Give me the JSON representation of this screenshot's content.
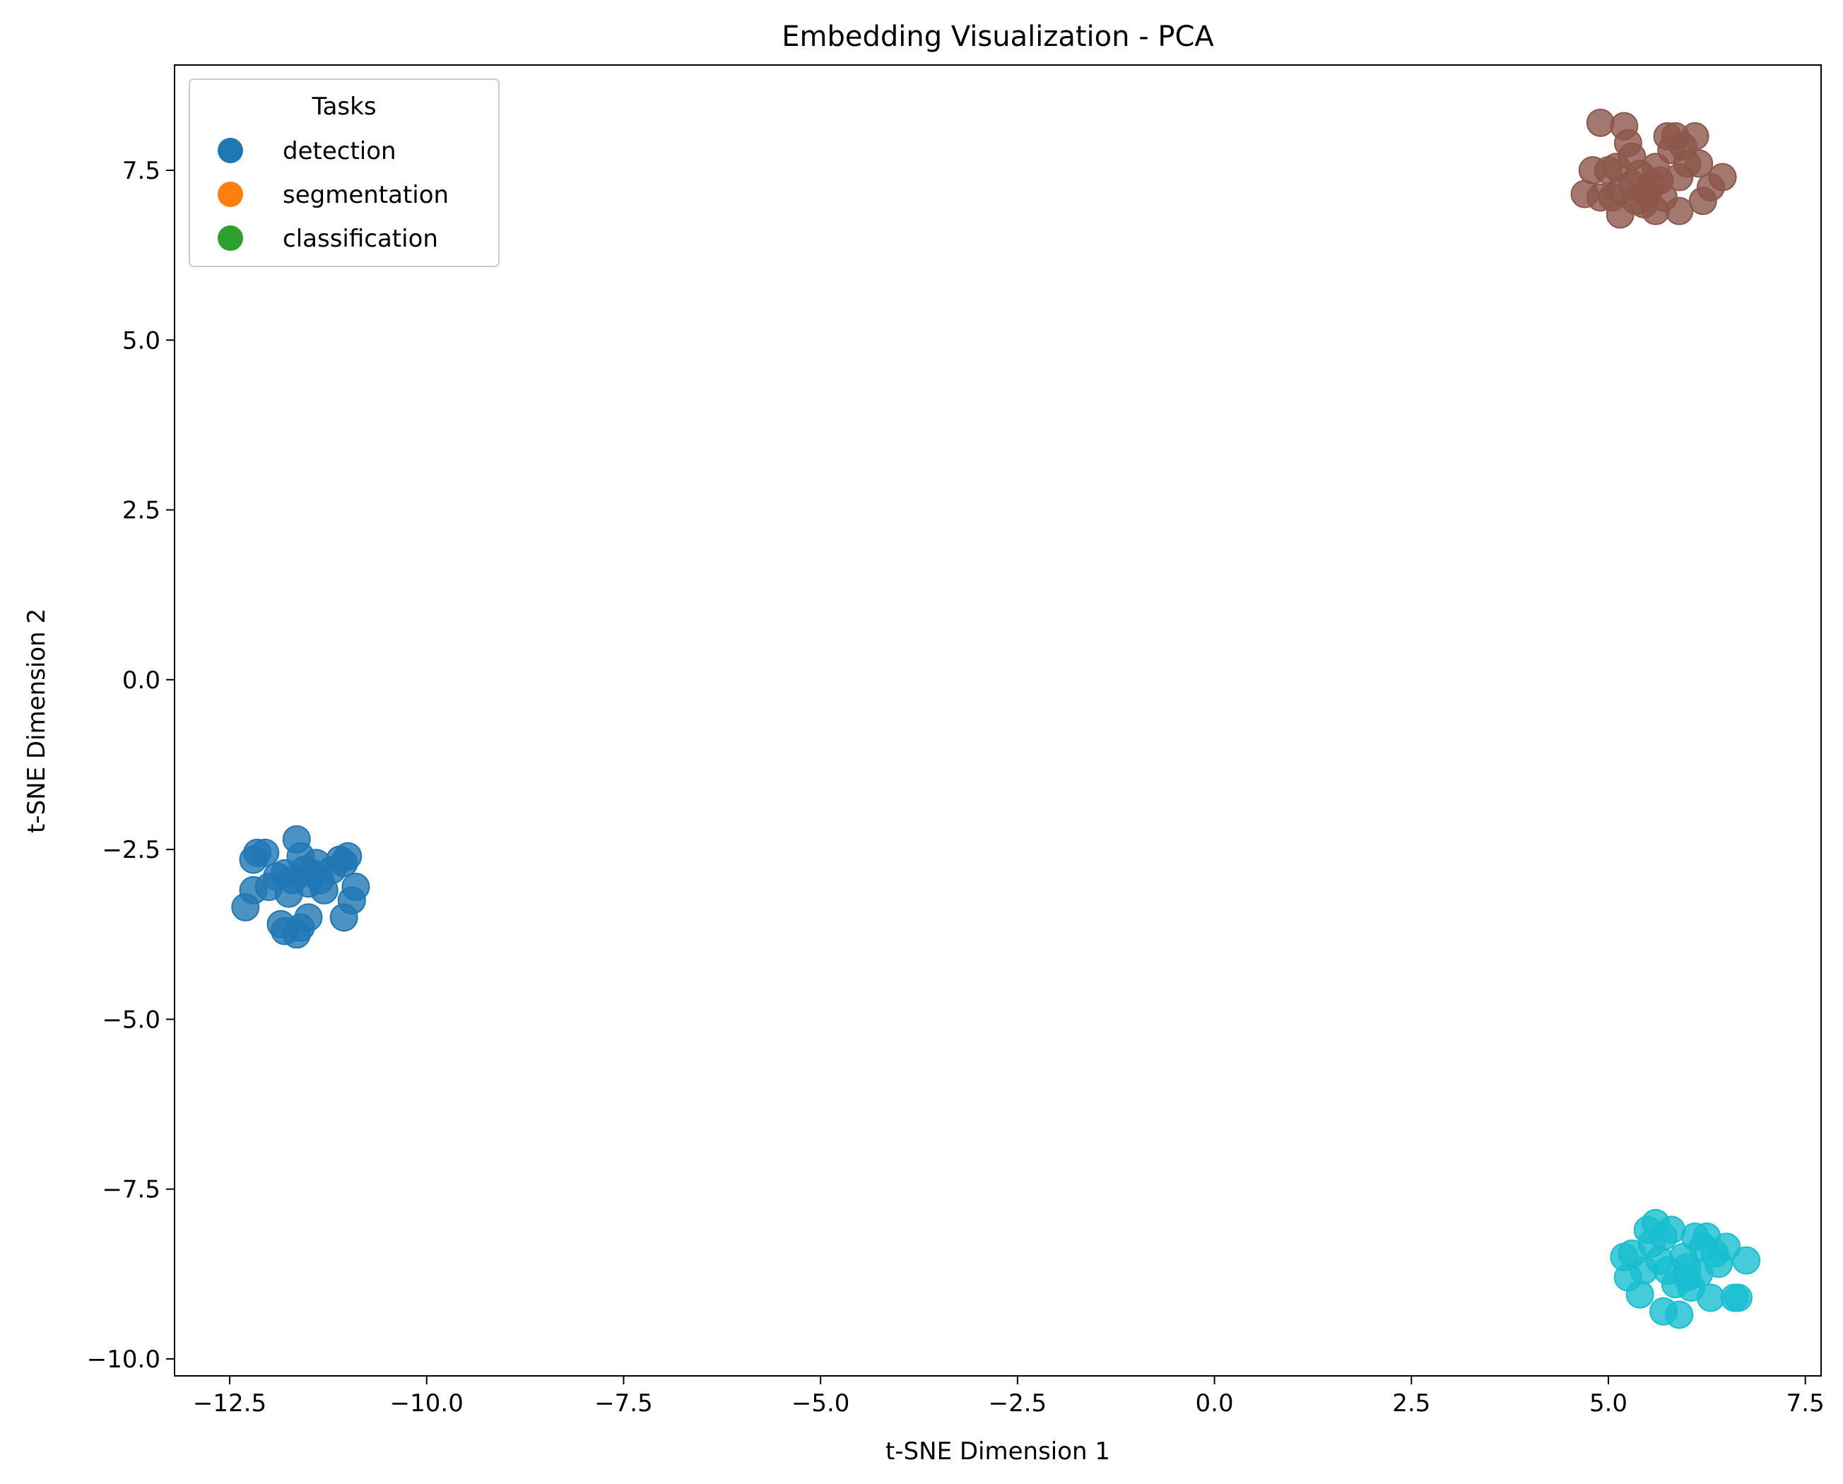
{
  "chart_data": {
    "type": "scatter",
    "title": "Embedding Visualization - PCA",
    "xlabel": "t-SNE Dimension 1",
    "ylabel": "t-SNE Dimension 2",
    "xlim": [
      -13.2,
      7.7
    ],
    "ylim": [
      -10.25,
      9.05
    ],
    "xticks": [
      -12.5,
      -10.0,
      -7.5,
      -5.0,
      -2.5,
      0.0,
      2.5,
      5.0,
      7.5
    ],
    "xtick_labels": [
      "−12.5",
      "−10.0",
      "−7.5",
      "−5.0",
      "−2.5",
      "0.0",
      "2.5",
      "5.0",
      "7.5"
    ],
    "yticks": [
      -10.0,
      -7.5,
      -5.0,
      -2.5,
      0.0,
      2.5,
      5.0,
      7.5
    ],
    "ytick_labels": [
      "−10.0",
      "−7.5",
      "−5.0",
      "−2.5",
      "0.0",
      "2.5",
      "5.0",
      "7.5"
    ],
    "grid": false,
    "legend": {
      "title": "Tasks",
      "position": "top-left",
      "entries": [
        {
          "label": "detection",
          "color": "#1f77b4"
        },
        {
          "label": "segmentation",
          "color": "#ff7f0e"
        },
        {
          "label": "classification",
          "color": "#2ca02c"
        }
      ]
    },
    "series": [
      {
        "color": "#1f77b4",
        "points": [
          [
            -12.3,
            -3.35
          ],
          [
            -12.2,
            -2.65
          ],
          [
            -12.15,
            -2.55
          ],
          [
            -12.2,
            -3.1
          ],
          [
            -12.05,
            -2.55
          ],
          [
            -12.0,
            -3.05
          ],
          [
            -11.9,
            -2.9
          ],
          [
            -11.85,
            -3.6
          ],
          [
            -11.8,
            -3.7
          ],
          [
            -11.75,
            -3.15
          ],
          [
            -11.7,
            -2.95
          ],
          [
            -11.65,
            -3.75
          ],
          [
            -11.65,
            -2.35
          ],
          [
            -11.6,
            -3.65
          ],
          [
            -11.6,
            -2.6
          ],
          [
            -11.55,
            -2.8
          ],
          [
            -11.5,
            -3.5
          ],
          [
            -11.5,
            -3.0
          ],
          [
            -11.4,
            -2.7
          ],
          [
            -11.35,
            -2.95
          ],
          [
            -11.3,
            -3.1
          ],
          [
            -11.2,
            -2.8
          ],
          [
            -11.1,
            -2.65
          ],
          [
            -11.05,
            -3.5
          ],
          [
            -11.05,
            -2.7
          ],
          [
            -11.0,
            -2.6
          ],
          [
            -10.95,
            -3.25
          ],
          [
            -10.9,
            -3.05
          ],
          [
            -11.8,
            -2.85
          ],
          [
            -11.45,
            -2.85
          ]
        ]
      },
      {
        "color": "#8c564b",
        "points": [
          [
            4.7,
            7.15
          ],
          [
            4.8,
            7.5
          ],
          [
            4.9,
            7.1
          ],
          [
            4.9,
            8.2
          ],
          [
            5.0,
            7.5
          ],
          [
            5.05,
            7.1
          ],
          [
            5.1,
            7.55
          ],
          [
            5.15,
            6.85
          ],
          [
            5.15,
            7.2
          ],
          [
            5.2,
            8.15
          ],
          [
            5.25,
            7.9
          ],
          [
            5.3,
            7.7
          ],
          [
            5.3,
            7.3
          ],
          [
            5.35,
            7.05
          ],
          [
            5.4,
            7.45
          ],
          [
            5.45,
            7.0
          ],
          [
            5.5,
            7.15
          ],
          [
            5.55,
            7.3
          ],
          [
            5.6,
            6.9
          ],
          [
            5.6,
            7.55
          ],
          [
            5.65,
            7.35
          ],
          [
            5.7,
            7.1
          ],
          [
            5.75,
            8.0
          ],
          [
            5.8,
            7.8
          ],
          [
            5.85,
            8.0
          ],
          [
            5.9,
            7.4
          ],
          [
            5.9,
            6.9
          ],
          [
            5.95,
            7.85
          ],
          [
            6.0,
            7.6
          ],
          [
            6.1,
            8.0
          ],
          [
            6.15,
            7.6
          ],
          [
            6.2,
            7.05
          ],
          [
            6.3,
            7.25
          ],
          [
            6.45,
            7.4
          ]
        ]
      },
      {
        "color": "#17becf",
        "points": [
          [
            5.2,
            -8.5
          ],
          [
            5.25,
            -8.8
          ],
          [
            5.3,
            -8.45
          ],
          [
            5.4,
            -9.05
          ],
          [
            5.45,
            -8.7
          ],
          [
            5.5,
            -8.1
          ],
          [
            5.6,
            -8.0
          ],
          [
            5.65,
            -8.55
          ],
          [
            5.7,
            -9.3
          ],
          [
            5.7,
            -8.2
          ],
          [
            5.75,
            -8.7
          ],
          [
            5.8,
            -8.1
          ],
          [
            5.85,
            -8.9
          ],
          [
            5.9,
            -9.35
          ],
          [
            5.95,
            -8.5
          ],
          [
            6.0,
            -8.65
          ],
          [
            6.05,
            -8.95
          ],
          [
            6.1,
            -8.2
          ],
          [
            6.15,
            -8.75
          ],
          [
            6.2,
            -8.35
          ],
          [
            6.25,
            -8.2
          ],
          [
            6.3,
            -9.1
          ],
          [
            6.35,
            -8.45
          ],
          [
            6.4,
            -8.6
          ],
          [
            6.5,
            -8.35
          ],
          [
            6.6,
            -9.1
          ],
          [
            6.65,
            -9.1
          ],
          [
            6.75,
            -8.55
          ],
          [
            5.55,
            -8.3
          ],
          [
            6.0,
            -8.8
          ]
        ]
      }
    ]
  }
}
